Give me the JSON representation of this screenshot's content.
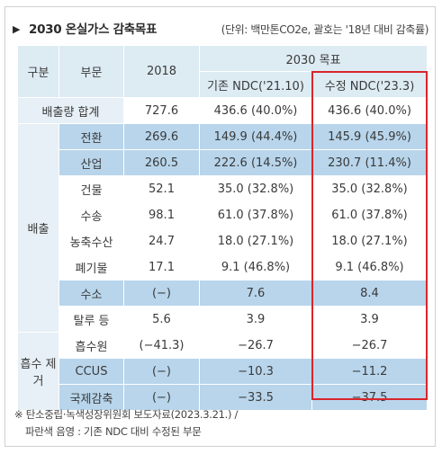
{
  "title": {
    "arrow": "▶",
    "text": "2030 온실가스 감축목표",
    "unit": "(단위: 백만톤CO2e, 괄호는 '18년 대비 감축률)"
  },
  "header": {
    "group": "구분",
    "sector": "부문",
    "year2018": "2018",
    "target": "2030 목표",
    "existing": "기존 NDC('21.10)",
    "revised": "수정 NDC('23.3)"
  },
  "total_row": {
    "label": "배출량 합계",
    "y2018": "727.6",
    "existing": "436.6 (40.0%)",
    "revised": "436.6 (40.0%)"
  },
  "emission_group": "배출",
  "emission_rows": [
    {
      "sector": "전환",
      "y2018": "269.6",
      "existing": "149.9 (44.4%)",
      "revised": "145.9 (45.9%)",
      "highlight": true
    },
    {
      "sector": "산업",
      "y2018": "260.5",
      "existing": "222.6 (14.5%)",
      "revised": "230.7 (11.4%)",
      "highlight": true
    },
    {
      "sector": "건물",
      "y2018": "52.1",
      "existing": "35.0 (32.8%)",
      "revised": "35.0 (32.8%)",
      "highlight": false
    },
    {
      "sector": "수송",
      "y2018": "98.1",
      "existing": "61.0 (37.8%)",
      "revised": "61.0 (37.8%)",
      "highlight": false
    },
    {
      "sector": "농축수산",
      "y2018": "24.7",
      "existing": "18.0 (27.1%)",
      "revised": "18.0 (27.1%)",
      "highlight": false
    },
    {
      "sector": "폐기물",
      "y2018": "17.1",
      "existing": "9.1 (46.8%)",
      "revised": "9.1 (46.8%)",
      "highlight": false
    },
    {
      "sector": "수소",
      "y2018": "(−)",
      "existing": "7.6",
      "revised": "8.4",
      "highlight": true
    },
    {
      "sector": "탈루 등",
      "y2018": "5.6",
      "existing": "3.9",
      "revised": "3.9",
      "highlight": false
    }
  ],
  "absorption_group": "흡수 제거",
  "absorption_rows": [
    {
      "sector": "흡수원",
      "y2018": "(−41.3)",
      "existing": "−26.7",
      "revised": "−26.7",
      "highlight": false
    },
    {
      "sector": "CCUS",
      "y2018": "(−)",
      "existing": "−10.3",
      "revised": "−11.2",
      "highlight": true
    },
    {
      "sector": "국제감축",
      "y2018": "(−)",
      "existing": "−33.5",
      "revised": "−37.5",
      "highlight": true
    }
  ],
  "notes": [
    "※ 탄소중립·녹색성장위원회 보도자료(2023.3.21.) /",
    "파란색 음영 : 기존 NDC 대비 수정된 부문"
  ],
  "colors": {
    "header_bg": "#ddebf3",
    "highlight_bg": "#b8d5eb",
    "label_bg": "#e7f0f6",
    "revised_box": "#d9262b"
  }
}
